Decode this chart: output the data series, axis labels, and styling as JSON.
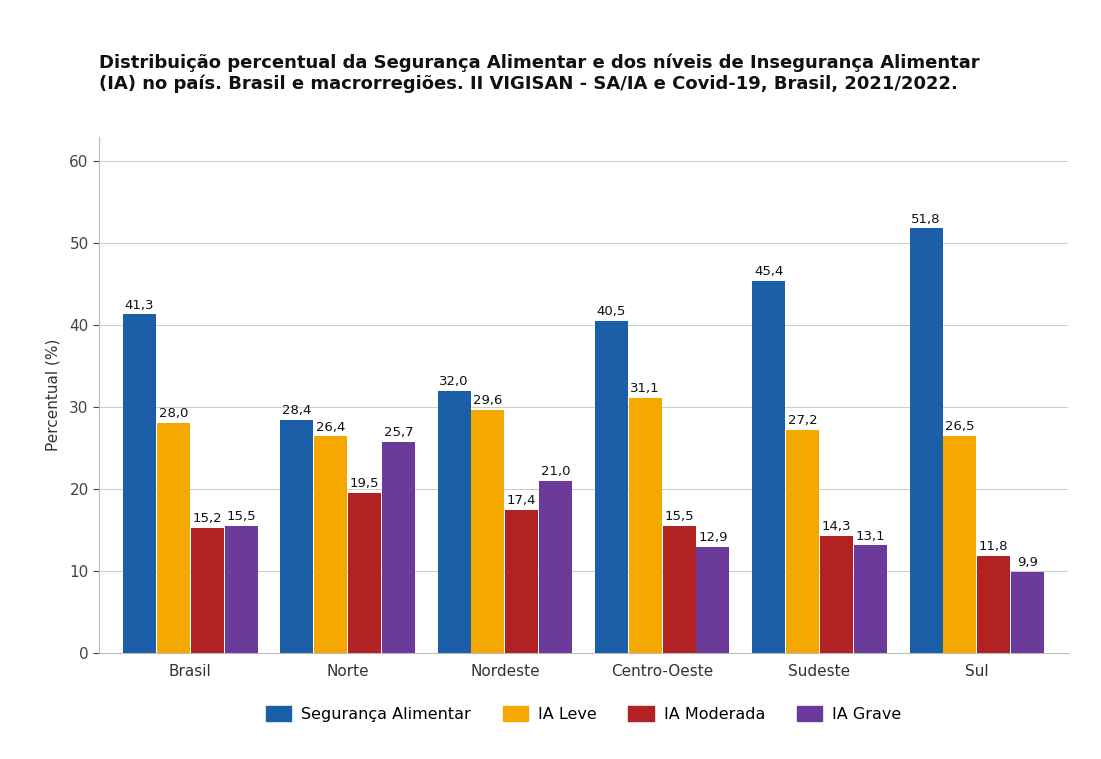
{
  "title_line1": "Distribuição percentual da Segurança Alimentar e dos níveis de Insegurança Alimentar",
  "title_line2": "(IA) no país. Brasil e macrorregiões. II VIGISAN - SA/IA e Covid-19, Brasil, 2021/2022.",
  "ylabel": "Percentual (%)",
  "categories": [
    "Brasil",
    "Norte",
    "Nordeste",
    "Centro-Oeste",
    "Sudeste",
    "Sul"
  ],
  "series": {
    "Segurança Alimentar": {
      "values": [
        41.3,
        28.4,
        32.0,
        40.5,
        45.4,
        51.8
      ],
      "color": "#1A5FA8"
    },
    "IA Leve": {
      "values": [
        28.0,
        26.4,
        29.6,
        31.1,
        27.2,
        26.5
      ],
      "color": "#F5A800"
    },
    "IA Moderada": {
      "values": [
        15.2,
        19.5,
        17.4,
        15.5,
        14.3,
        11.8
      ],
      "color": "#B22222"
    },
    "IA Grave": {
      "values": [
        15.5,
        25.7,
        21.0,
        12.9,
        13.1,
        9.9
      ],
      "color": "#6B3A9B"
    }
  },
  "ylim": [
    0,
    63
  ],
  "yticks": [
    0,
    10,
    20,
    30,
    40,
    50,
    60
  ],
  "bar_width": 0.21,
  "background_color": "#ffffff",
  "title_fontsize": 13.0,
  "label_fontsize": 9.5,
  "axis_label_fontsize": 11,
  "legend_fontsize": 11.5,
  "tick_fontsize": 11
}
